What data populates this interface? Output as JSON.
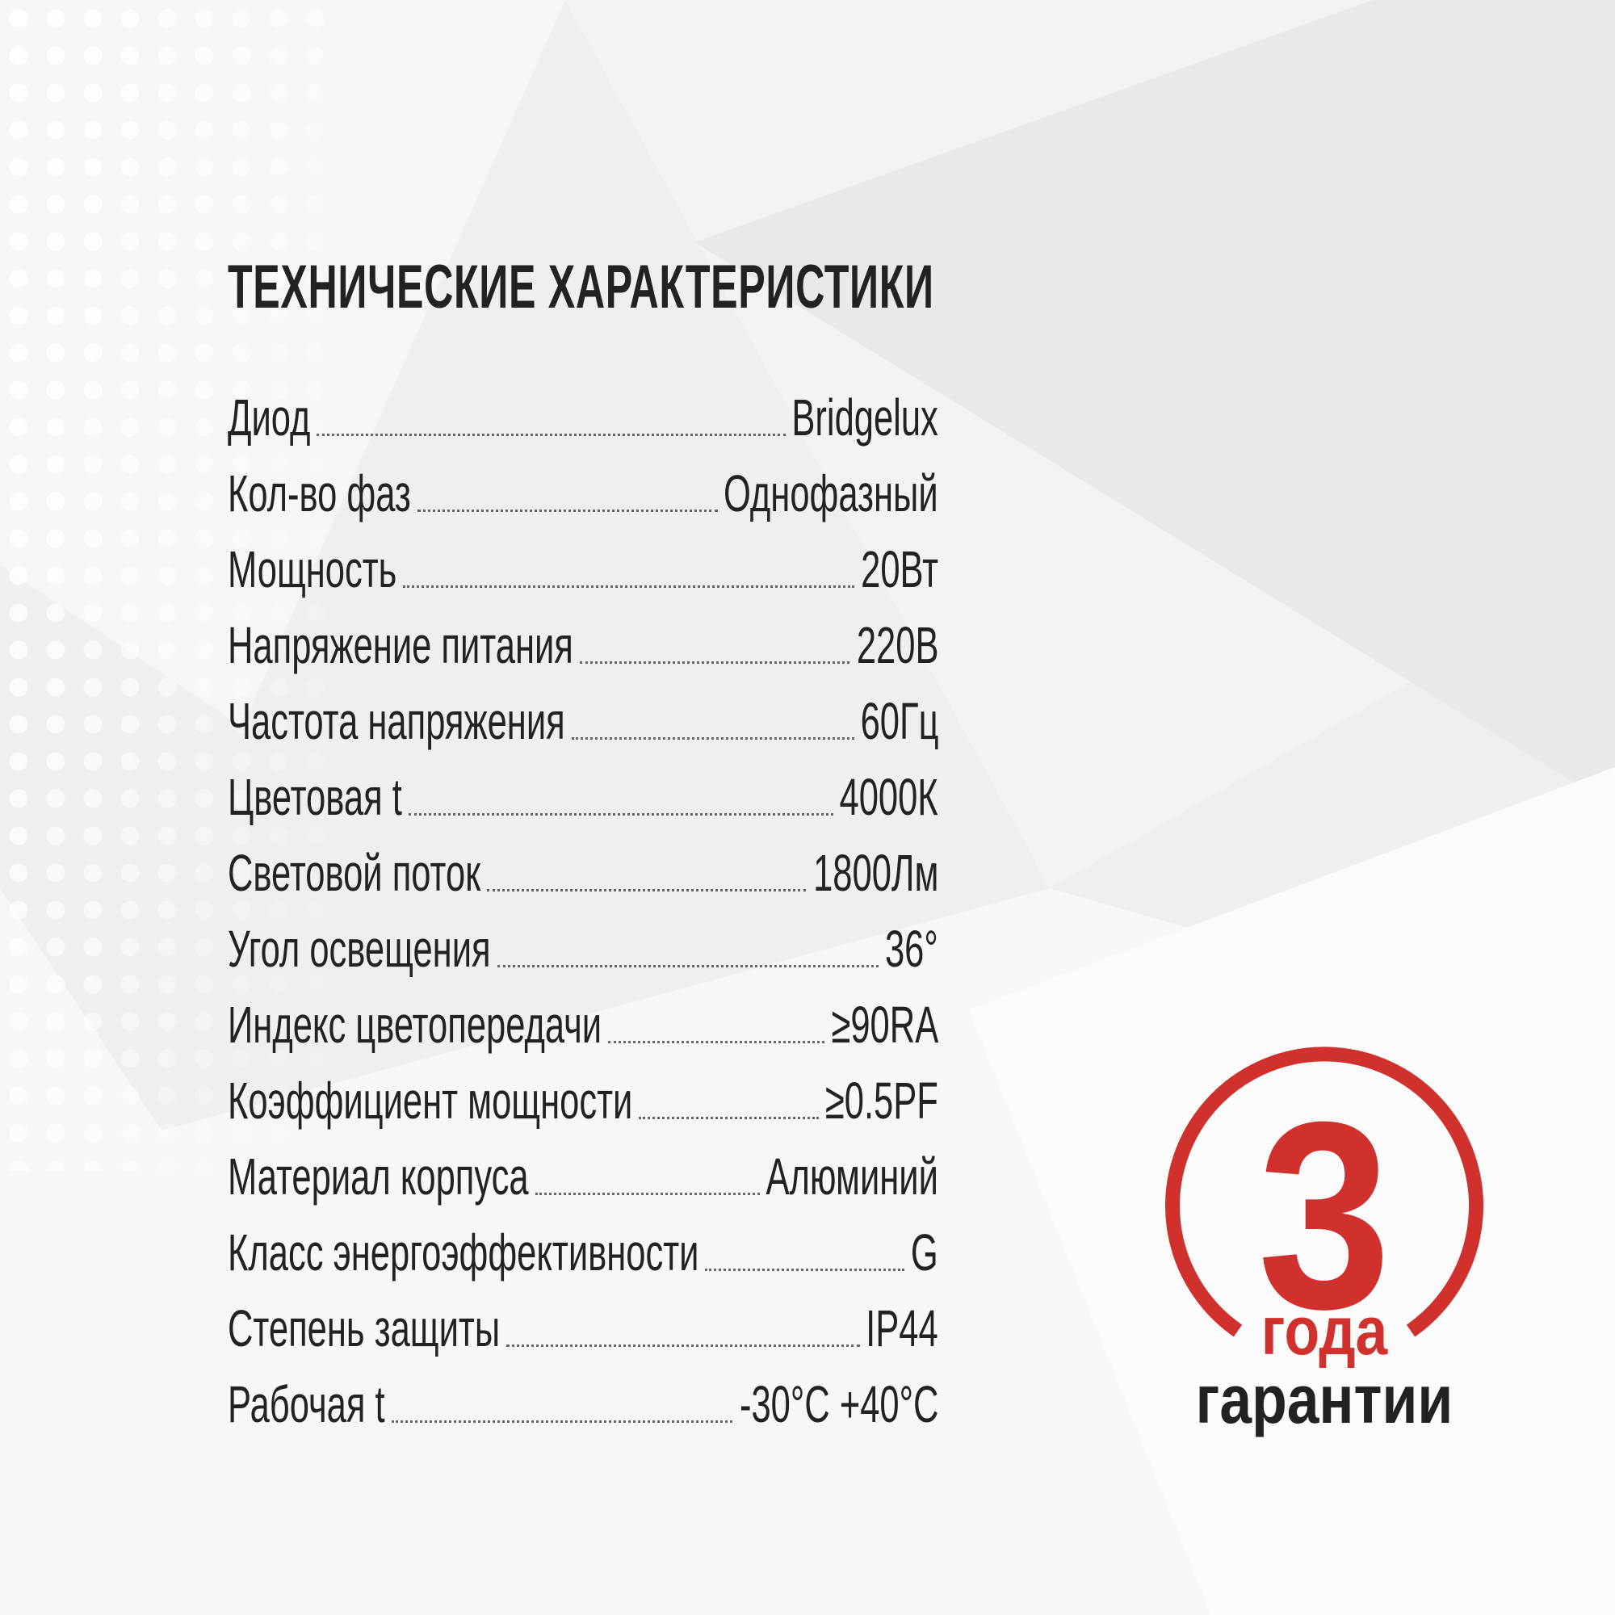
{
  "title": "ТЕХНИЧЕСКИЕ ХАРАКТЕРИСТИКИ",
  "specs": [
    {
      "label": "Диод",
      "value": "Bridgelux"
    },
    {
      "label": "Кол-во фаз",
      "value": "Однофазный"
    },
    {
      "label": "Мощность",
      "value": "20Вт"
    },
    {
      "label": "Напряжение питания",
      "value": "220В"
    },
    {
      "label": "Частота напряжения",
      "value": "60Гц"
    },
    {
      "label": "Цветовая t",
      "value": "4000К"
    },
    {
      "label": "Световой поток",
      "value": "1800Лм"
    },
    {
      "label": "Угол освещения",
      "value": "36°"
    },
    {
      "label": "Индекс цветопередачи",
      "value": "≥90RA"
    },
    {
      "label": "Коэффициент мощности",
      "value": "≥0.5PF"
    },
    {
      "label": "Материал корпуса",
      "value": "Алюминий"
    },
    {
      "label": "Класс энергоэффективности",
      "value": "G"
    },
    {
      "label": "Степень защиты",
      "value": "IP44"
    },
    {
      "label": "Рабочая t",
      "value": "-30°C +40°C"
    }
  ],
  "warranty": {
    "number": "3",
    "unit": "года",
    "text": "гарантии",
    "accent_color": "#d0312d"
  }
}
